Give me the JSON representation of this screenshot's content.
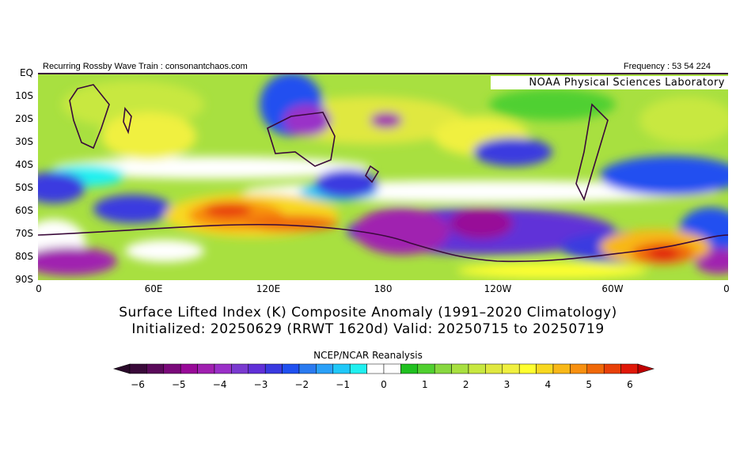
{
  "header": {
    "left": "Recurring Rossby Wave Train : consonantchaos.com",
    "right": "Frequency : 53 54 224"
  },
  "watermark": "NOAA Physical Sciences Laboratory",
  "map": {
    "lat_labels": [
      "EQ",
      "10S",
      "20S",
      "30S",
      "40S",
      "50S",
      "60S",
      "70S",
      "80S",
      "90S"
    ],
    "lon_labels": [
      "0",
      "60E",
      "120E",
      "180",
      "120W",
      "60W",
      "0"
    ]
  },
  "title": {
    "line1": "Surface Lifted Index (K) Composite Anomaly (1991–2020 Climatology)",
    "line2": "Initialized: 20250629 (RRWT 1620d) Valid: 20250715 to 20250719"
  },
  "colorbar": {
    "label": "NCEP/NCAR Reanalysis",
    "ticks": [
      "−6",
      "−5",
      "−4",
      "−3",
      "−2",
      "−1",
      "0",
      "1",
      "2",
      "3",
      "4",
      "5",
      "6"
    ],
    "colors": [
      "#3a0a3a",
      "#5a0a5a",
      "#7a0a7a",
      "#980a98",
      "#a020b0",
      "#9a30c8",
      "#7a3ad0",
      "#6030d8",
      "#3a3ae0",
      "#2050f0",
      "#2a7af0",
      "#2aa0f8",
      "#20c8f8",
      "#20f0f0",
      "#ffffff",
      "#ffffff",
      "#20c020",
      "#50d030",
      "#88d840",
      "#a8e040",
      "#c8e840",
      "#e0e840",
      "#f0f040",
      "#ffff30",
      "#f8d820",
      "#f8b818",
      "#f89010",
      "#f06808",
      "#e84008",
      "#e01808"
    ],
    "under_color": "#2a0a2a",
    "over_color": "#c00000"
  }
}
